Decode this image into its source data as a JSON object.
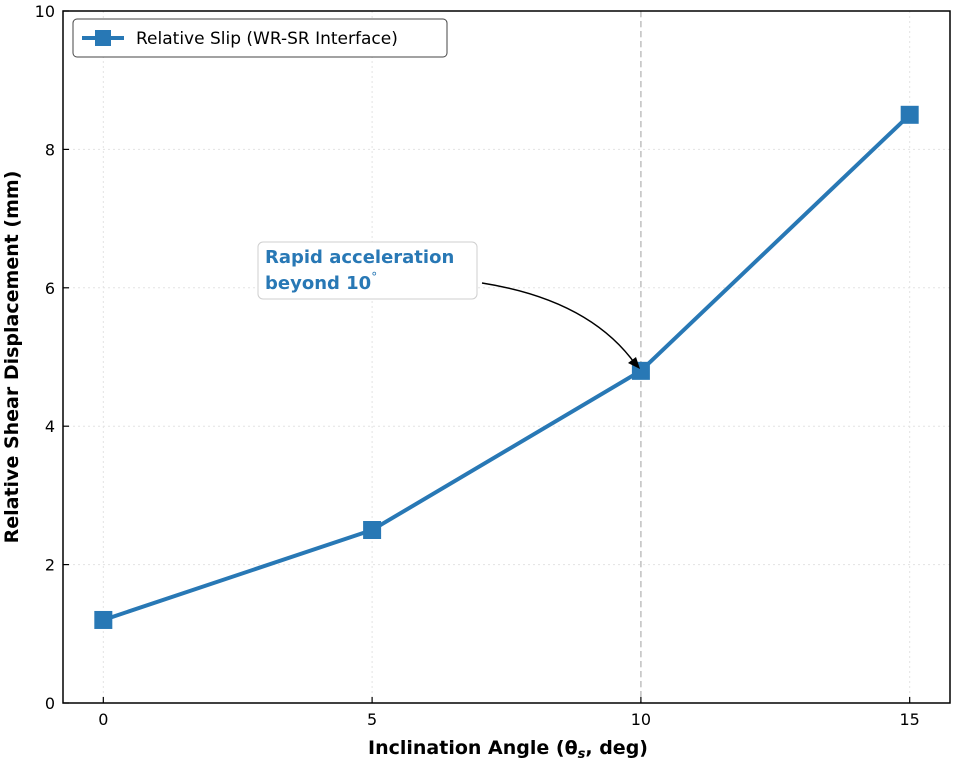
{
  "chart_data": {
    "type": "line",
    "title": "",
    "xlabel": "Inclination Angle (θ",
    "xlabel_sub": "s",
    "xlabel_tail": ", deg)",
    "ylabel": "Relative Shear Displacement (mm)",
    "x": [
      0,
      5,
      10,
      15
    ],
    "xticks": [
      "0",
      "5",
      "10",
      "15"
    ],
    "yticks": [
      "0",
      "2",
      "4",
      "6",
      "8",
      "10"
    ],
    "xlim": [
      -0.75,
      15.75
    ],
    "ylim": [
      0,
      10
    ],
    "grid": true,
    "legend_position": "top-left",
    "series": [
      {
        "name": "Relative Slip (WR-SR Interface)",
        "values": [
          1.2,
          2.5,
          4.8,
          8.5
        ],
        "color": "#2878b5",
        "marker": "square"
      }
    ],
    "reference_line": {
      "x": 10,
      "style": "dashed",
      "color": "#c0c0c0"
    },
    "annotation": {
      "line1": "Rapid acceleration",
      "line2": "beyond 10",
      "degree": "°",
      "color": "#2878b5",
      "target": {
        "x": 10,
        "y": 4.8
      }
    }
  }
}
